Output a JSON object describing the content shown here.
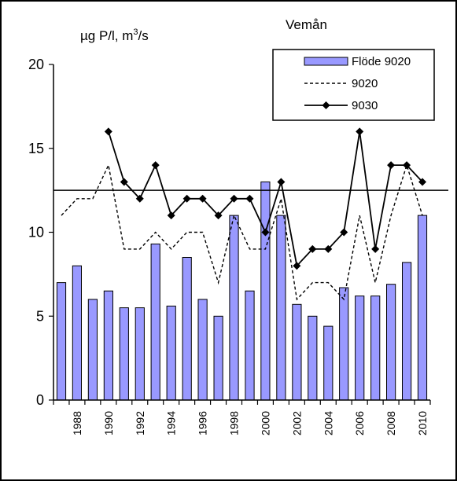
{
  "chart_data": {
    "type": "bar",
    "title": "Vemån",
    "ylabel_prefix": "µg P/l, m",
    "ylabel_sup": "3",
    "ylabel_suffix": "/s",
    "ylim": [
      0,
      20
    ],
    "yticks": [
      0,
      5,
      10,
      15,
      20
    ],
    "grid": false,
    "legend_position": "top-right",
    "x": [
      1987,
      1988,
      1989,
      1990,
      1991,
      1992,
      1993,
      1994,
      1995,
      1996,
      1997,
      1998,
      1999,
      2000,
      2001,
      2002,
      2003,
      2004,
      2005,
      2006,
      2007,
      2008,
      2009,
      2010
    ],
    "xtick_labels": [
      "1988",
      "1990",
      "1992",
      "1994",
      "1996",
      "1998",
      "2000",
      "2002",
      "2004",
      "2006",
      "2008",
      "2010"
    ],
    "series": [
      {
        "name": "Flöde 9020",
        "kind": "bar",
        "color": "#9999FF",
        "values": [
          7.0,
          8.0,
          6.0,
          6.5,
          5.5,
          5.5,
          9.3,
          5.6,
          8.5,
          6.0,
          5.0,
          11.0,
          6.5,
          13.0,
          11.0,
          5.7,
          5.0,
          4.4,
          6.7,
          6.2,
          6.2,
          6.9,
          8.2,
          11.0
        ]
      },
      {
        "name": "9020",
        "kind": "dashed-line",
        "color": "#000000",
        "values": [
          11,
          12,
          12,
          14,
          9,
          9,
          10,
          9,
          10,
          10,
          7,
          11,
          9,
          9,
          12,
          6,
          7,
          7,
          6,
          11,
          7,
          11,
          14,
          11
        ]
      },
      {
        "name": "9030",
        "kind": "line-marker",
        "color": "#000000",
        "values": [
          null,
          null,
          null,
          16,
          13,
          12,
          14,
          11,
          12,
          12,
          11,
          12,
          12,
          10,
          13,
          8,
          9,
          9,
          10,
          16,
          9,
          14,
          14,
          13
        ]
      }
    ],
    "reference_line": {
      "value": 12.5,
      "color": "#000000"
    }
  }
}
